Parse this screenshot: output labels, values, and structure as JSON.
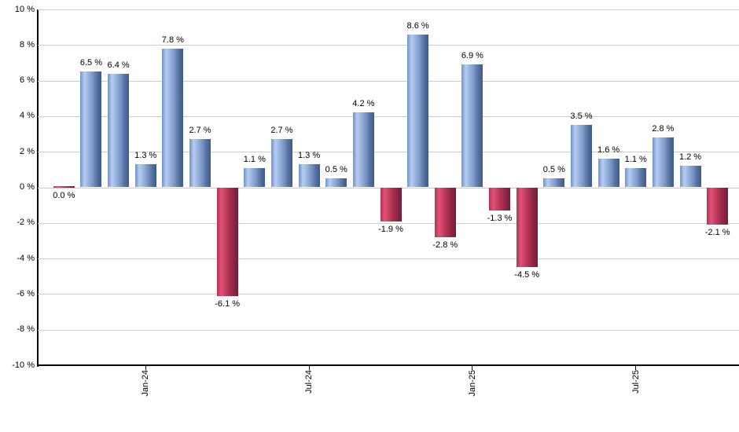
{
  "chart_data": {
    "type": "bar",
    "title": "",
    "unit": "%",
    "values": [
      0.0,
      6.5,
      6.4,
      1.3,
      7.8,
      2.7,
      -6.1,
      1.1,
      2.7,
      1.3,
      0.5,
      4.2,
      -1.9,
      8.6,
      -2.8,
      6.9,
      -1.3,
      -4.5,
      0.5,
      3.5,
      1.6,
      1.1,
      2.8,
      1.2,
      -2.1
    ],
    "bar_labels": [
      "0.0 %",
      "6.5 %",
      "6.4 %",
      "1.3 %",
      "7.8 %",
      "2.7 %",
      "-6.1 %",
      "1.1 %",
      "2.7 %",
      "1.3 %",
      "0.5 %",
      "4.2 %",
      "-1.9 %",
      "8.6 %",
      "-2.8 %",
      "6.9 %",
      "-1.3 %",
      "-4.5 %",
      "0.5 %",
      "3.5 %",
      "1.6 %",
      "1.1 %",
      "2.8 %",
      "1.2 %",
      "-2.1 %"
    ],
    "x_ticks": [
      {
        "label": "Jan-24",
        "bar_index": 3
      },
      {
        "label": "Jul-24",
        "bar_index": 9
      },
      {
        "label": "Jan-25",
        "bar_index": 15
      },
      {
        "label": "Jul-25",
        "bar_index": 21
      }
    ],
    "y_axis": {
      "min": -10,
      "max": 10,
      "step": 2,
      "tick_labels": [
        "10 %",
        "8 %",
        "6 %",
        "4 %",
        "2 %",
        "0 %",
        "-2 %",
        "-4 %",
        "-6 %",
        "-8 %",
        "-10 %"
      ]
    },
    "layout": {
      "grid": true,
      "legend": false,
      "bar_color_positive": "#6f93c8",
      "bar_color_negative": "#c23458",
      "gridline_color": "#cccccc",
      "axis_color": "#000000",
      "label_color": "#000000"
    }
  }
}
